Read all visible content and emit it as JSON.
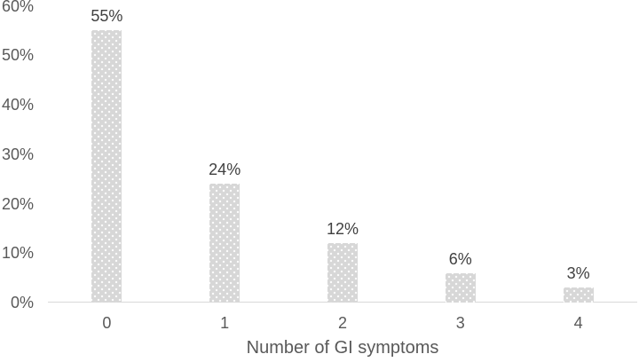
{
  "chart_data": {
    "type": "bar",
    "xlabel": "Number of GI symptoms",
    "categories": [
      "0",
      "1",
      "2",
      "3",
      "4"
    ],
    "values": [
      55,
      24,
      12,
      6,
      3
    ],
    "data_labels": [
      "55%",
      "24%",
      "12%",
      "6%",
      "3%"
    ],
    "y_ticks": [
      {
        "value": 0,
        "label": "0%"
      },
      {
        "value": 10,
        "label": "10%"
      },
      {
        "value": 20,
        "label": "20%"
      },
      {
        "value": 30,
        "label": "30%"
      },
      {
        "value": 40,
        "label": "40%"
      },
      {
        "value": 50,
        "label": "50%"
      },
      {
        "value": 60,
        "label": "60%"
      }
    ],
    "ylim": [
      0,
      60
    ],
    "grid": false,
    "legend": "none",
    "colors": {
      "bar_fill": "#d7d7d7",
      "bar_pattern_dots": "#ffffff",
      "axis_line": "#d9d9d9",
      "tick_label": "#595959",
      "category_label": "#595959",
      "data_label": "#404040",
      "axis_title": "#595959",
      "background": "#ffffff"
    }
  }
}
